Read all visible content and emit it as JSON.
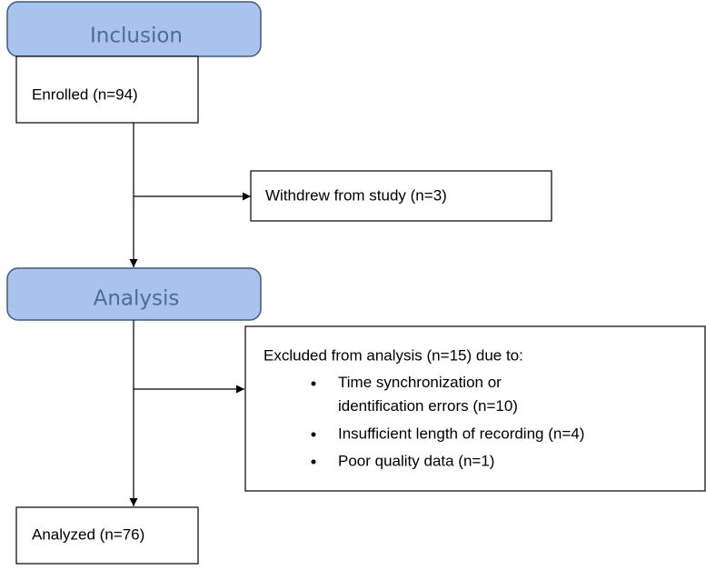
{
  "sections": [
    {
      "title": "Inclusion"
    },
    {
      "title": "Analysis"
    }
  ],
  "boxes": {
    "enrolled": "Enrolled (n=94)",
    "withdrew": "Withdrew from study (n=3)",
    "excluded": {
      "heading": "Excluded from analysis (n=15) due to:",
      "reasons": [
        "Time synchronization or\nidentification errors (n=10)",
        "Insufficient length of recording (n=4)",
        "Poor quality data (n=1)"
      ]
    },
    "analyzed": "Analyzed (n=76)"
  }
}
